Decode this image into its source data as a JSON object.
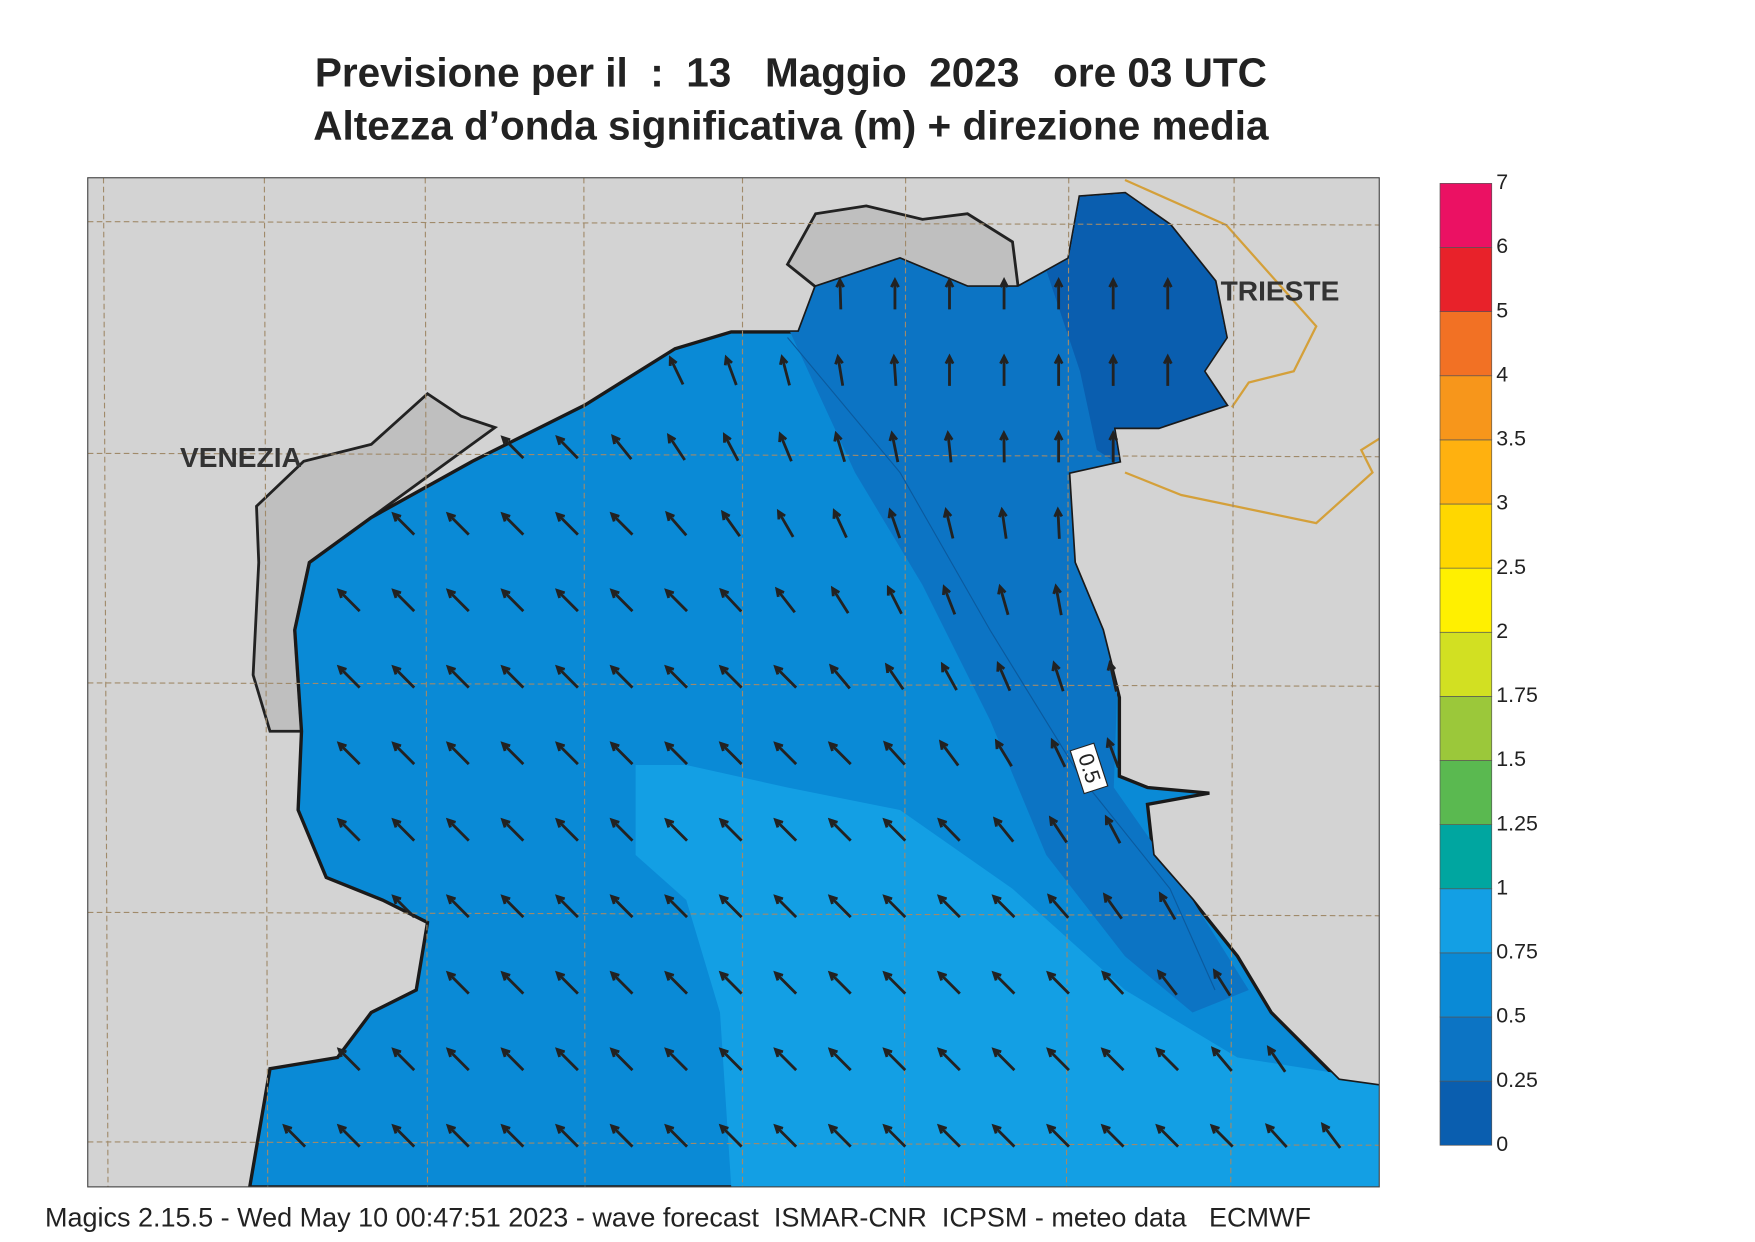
{
  "title": [
    "Previsione per il  :  13   Maggio  2023   ore 03 UTC",
    "Altezza d’onda significativa (m) + direzione media"
  ],
  "map": {
    "cities": [
      "VENEZIA",
      "TRIESTE"
    ],
    "contour_label": "0.5"
  },
  "legend": {
    "levels": [
      0,
      0.25,
      0.5,
      0.75,
      1,
      1.25,
      1.5,
      1.75,
      2,
      2.5,
      3,
      3.5,
      4,
      5,
      6,
      7
    ],
    "colors": [
      "#0a5eaf",
      "#0c74c4",
      "#0a8ad6",
      "#139fe4",
      "#00a6a0",
      "#5ab950",
      "#9bc83a",
      "#d2e022",
      "#fff000",
      "#ffd700",
      "#ffb10f",
      "#f7961b",
      "#f27124",
      "#e8222a",
      "#eb1163"
    ]
  },
  "footer": "Magics 2.15.5 - Wed May 10 00:47:51 2023 - wave forecast  ISMAR-CNR  ICPSM - meteo data   ECMWF"
}
